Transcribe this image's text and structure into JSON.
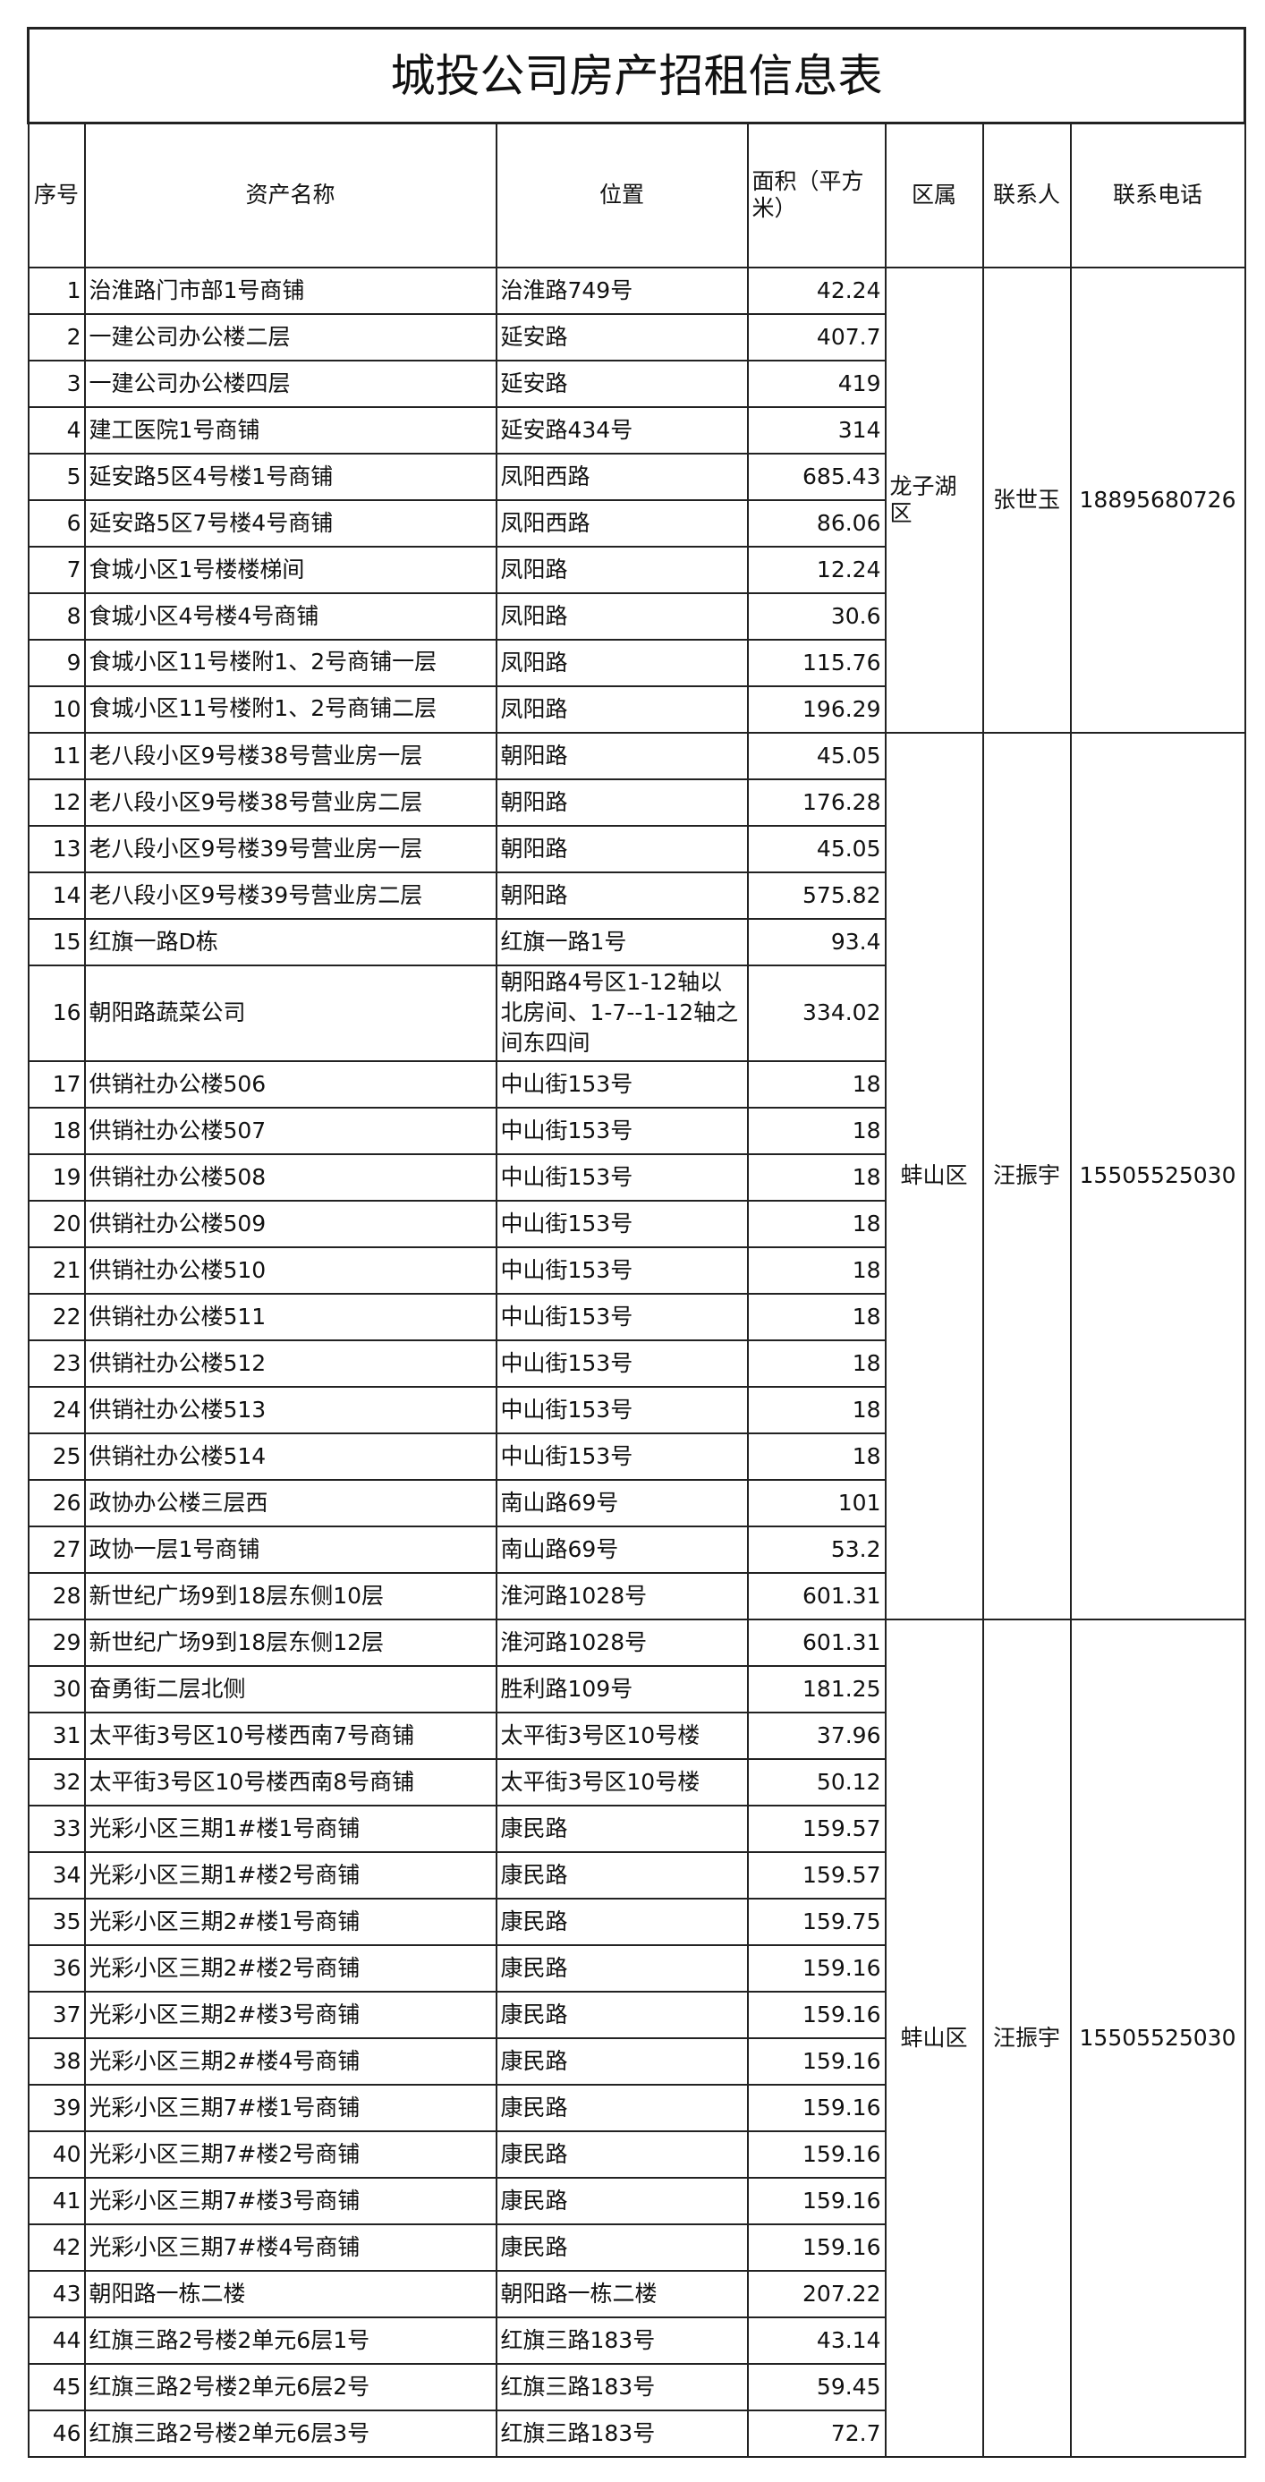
{
  "title": "城投公司房产招租信息表",
  "headers": [
    "序号",
    "资产名称",
    "位置",
    "面积（平方米）",
    "区属",
    "联系人",
    "联系电话"
  ],
  "groups": [
    {
      "district": "龙子湖区",
      "contact": "张世玉",
      "phone": "18895680726",
      "from": 1,
      "to": 10
    },
    {
      "district": "蚌山区",
      "contact": "汪振宇",
      "phone": "15505525030",
      "from": 11,
      "to": 28
    },
    {
      "district": "蚌山区",
      "contact": "汪振宇",
      "phone": "15505525030",
      "from": 29,
      "to": 46
    }
  ],
  "rows": [
    {
      "no": "1",
      "name": "治淮路门市部1号商铺",
      "location": "治淮路749号",
      "area": "42.24"
    },
    {
      "no": "2",
      "name": "一建公司办公楼二层",
      "location": "延安路",
      "area": "407.7"
    },
    {
      "no": "3",
      "name": "一建公司办公楼四层",
      "location": "延安路",
      "area": "419"
    },
    {
      "no": "4",
      "name": "建工医院1号商铺",
      "location": "延安路434号",
      "area": "314"
    },
    {
      "no": "5",
      "name": "延安路5区4号楼1号商铺",
      "location": "凤阳西路",
      "area": "685.43"
    },
    {
      "no": "6",
      "name": "延安路5区7号楼4号商铺",
      "location": "凤阳西路",
      "area": "86.06"
    },
    {
      "no": "7",
      "name": "食城小区1号楼楼梯间",
      "location": "凤阳路",
      "area": "12.24"
    },
    {
      "no": "8",
      "name": "食城小区4号楼4号商铺",
      "location": "凤阳路",
      "area": "30.6"
    },
    {
      "no": "9",
      "name": "食城小区11号楼附1、2号商铺一层",
      "location": "凤阳路",
      "area": "115.76"
    },
    {
      "no": "10",
      "name": "食城小区11号楼附1、2号商铺二层",
      "location": "凤阳路",
      "area": "196.29"
    },
    {
      "no": "11",
      "name": "老八段小区9号楼38号营业房一层",
      "location": "朝阳路",
      "area": "45.05"
    },
    {
      "no": "12",
      "name": "老八段小区9号楼38号营业房二层",
      "location": "朝阳路",
      "area": "176.28"
    },
    {
      "no": "13",
      "name": "老八段小区9号楼39号营业房一层",
      "location": "朝阳路",
      "area": "45.05"
    },
    {
      "no": "14",
      "name": "老八段小区9号楼39号营业房二层",
      "location": "朝阳路",
      "area": "575.82"
    },
    {
      "no": "15",
      "name": "红旗一路D栋",
      "location": "红旗一路1号",
      "area": "93.4"
    },
    {
      "no": "16",
      "name": "朝阳路蔬菜公司",
      "location": "朝阳路4号区1-12轴以北房间、1-7--1-12轴之间东四间",
      "area": "334.02"
    },
    {
      "no": "17",
      "name": "供销社办公楼506",
      "location": "中山街153号",
      "area": "18"
    },
    {
      "no": "18",
      "name": "供销社办公楼507",
      "location": "中山街153号",
      "area": "18"
    },
    {
      "no": "19",
      "name": "供销社办公楼508",
      "location": "中山街153号",
      "area": "18"
    },
    {
      "no": "20",
      "name": "供销社办公楼509",
      "location": "中山街153号",
      "area": "18"
    },
    {
      "no": "21",
      "name": "供销社办公楼510",
      "location": "中山街153号",
      "area": "18"
    },
    {
      "no": "22",
      "name": "供销社办公楼511",
      "location": "中山街153号",
      "area": "18"
    },
    {
      "no": "23",
      "name": "供销社办公楼512",
      "location": "中山街153号",
      "area": "18"
    },
    {
      "no": "24",
      "name": "供销社办公楼513",
      "location": "中山街153号",
      "area": "18"
    },
    {
      "no": "25",
      "name": "供销社办公楼514",
      "location": "中山街153号",
      "area": "18"
    },
    {
      "no": "26",
      "name": "政协办公楼三层西",
      "location": "南山路69号",
      "area": "101"
    },
    {
      "no": "27",
      "name": "政协一层1号商铺",
      "location": "南山路69号",
      "area": "53.2"
    },
    {
      "no": "28",
      "name": "新世纪广场9到18层东侧10层",
      "location": "淮河路1028号",
      "area": "601.31"
    },
    {
      "no": "29",
      "name": "新世纪广场9到18层东侧12层",
      "location": "淮河路1028号",
      "area": "601.31"
    },
    {
      "no": "30",
      "name": "奋勇街二层北侧",
      "location": "胜利路109号",
      "area": "181.25"
    },
    {
      "no": "31",
      "name": "太平街3号区10号楼西南7号商铺",
      "location": "太平街3号区10号楼",
      "area": "37.96"
    },
    {
      "no": "32",
      "name": "太平街3号区10号楼西南8号商铺",
      "location": "太平街3号区10号楼",
      "area": "50.12"
    },
    {
      "no": "33",
      "name": "光彩小区三期1#楼1号商铺",
      "location": "康民路",
      "area": "159.57"
    },
    {
      "no": "34",
      "name": "光彩小区三期1#楼2号商铺",
      "location": "康民路",
      "area": "159.57"
    },
    {
      "no": "35",
      "name": "光彩小区三期2#楼1号商铺",
      "location": "康民路",
      "area": "159.75"
    },
    {
      "no": "36",
      "name": "光彩小区三期2#楼2号商铺",
      "location": "康民路",
      "area": "159.16"
    },
    {
      "no": "37",
      "name": "光彩小区三期2#楼3号商铺",
      "location": "康民路",
      "area": "159.16"
    },
    {
      "no": "38",
      "name": "光彩小区三期2#楼4号商铺",
      "location": "康民路",
      "area": "159.16"
    },
    {
      "no": "39",
      "name": "光彩小区三期7#楼1号商铺",
      "location": "康民路",
      "area": "159.16"
    },
    {
      "no": "40",
      "name": "光彩小区三期7#楼2号商铺",
      "location": "康民路",
      "area": "159.16"
    },
    {
      "no": "41",
      "name": "光彩小区三期7#楼3号商铺",
      "location": "康民路",
      "area": "159.16"
    },
    {
      "no": "42",
      "name": "光彩小区三期7#楼4号商铺",
      "location": "康民路",
      "area": "159.16"
    },
    {
      "no": "43",
      "name": "朝阳路一栋二楼",
      "location": "朝阳路一栋二楼",
      "area": "207.22"
    },
    {
      "no": "44",
      "name": "红旗三路2号楼2单元6层1号",
      "location": "红旗三路183号",
      "area": "43.14"
    },
    {
      "no": "45",
      "name": "红旗三路2号楼2单元6层2号",
      "location": "红旗三路183号",
      "area": "59.45"
    },
    {
      "no": "46",
      "name": "红旗三路2号楼2单元6层3号",
      "location": "红旗三路183号",
      "area": "72.7"
    }
  ]
}
